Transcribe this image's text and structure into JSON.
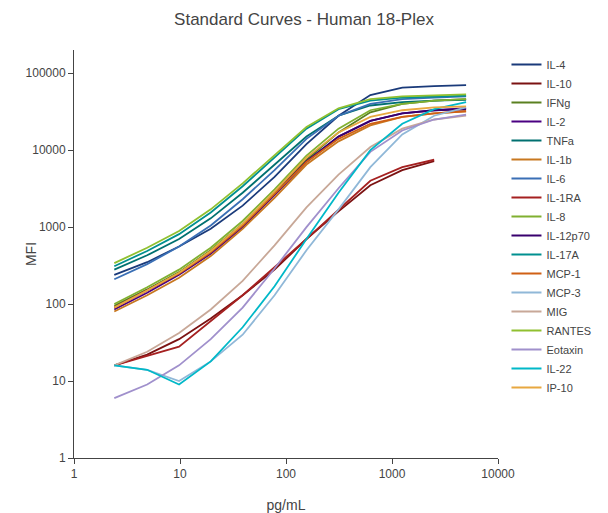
{
  "chart_data": {
    "type": "line",
    "title": "Standard Curves - Human 18-Plex",
    "xlabel": "pg/mL",
    "ylabel": "MFI",
    "log": true,
    "grid": false,
    "legend": "right",
    "xlim": [
      1,
      10000
    ],
    "ylim": [
      1,
      200000
    ],
    "xticks": [
      1,
      10,
      100,
      1000,
      10000
    ],
    "yticks": [
      1,
      10,
      100,
      1000,
      10000,
      100000
    ],
    "series": [
      {
        "name": "IL-4",
        "color": "#1a3a7a",
        "x": [
          2.4,
          4.9,
          9.8,
          19.5,
          39,
          78,
          156,
          313,
          625,
          1250,
          2500,
          5000
        ],
        "values": [
          240,
          350,
          560,
          950,
          1900,
          4500,
          12000,
          28000,
          52000,
          65000,
          68000,
          70000
        ]
      },
      {
        "name": "IL-10",
        "color": "#7b1212",
        "x": [
          2.4,
          4.9,
          9.8,
          19.5,
          39,
          78,
          156,
          313,
          625,
          1250,
          2500
        ],
        "values": [
          16,
          22,
          35,
          65,
          130,
          280,
          700,
          1600,
          3500,
          5500,
          7200
        ]
      },
      {
        "name": "IFNg",
        "color": "#5a8020",
        "x": [
          2.4,
          4.9,
          9.8,
          19.5,
          39,
          78,
          156,
          313,
          625,
          1250,
          2500,
          5000
        ],
        "values": [
          95,
          155,
          260,
          500,
          1100,
          2800,
          7500,
          17000,
          31000,
          40000,
          44000,
          46000
        ]
      },
      {
        "name": "IL-2",
        "color": "#4b0082",
        "x": [
          2.4,
          4.9,
          9.8,
          19.5,
          39,
          78,
          156,
          313,
          625,
          1250,
          2500,
          5000
        ],
        "values": [
          85,
          140,
          240,
          450,
          1000,
          2600,
          7000,
          15000,
          24000,
          30000,
          33000,
          35000
        ]
      },
      {
        "name": "TNFa",
        "color": "#007070",
        "x": [
          2.4,
          4.9,
          9.8,
          19.5,
          39,
          78,
          156,
          313,
          625,
          1250,
          2500,
          5000
        ],
        "values": [
          280,
          430,
          700,
          1300,
          2800,
          6500,
          15000,
          28000,
          38000,
          42000,
          44000,
          45000
        ]
      },
      {
        "name": "IL-1b",
        "color": "#c87820",
        "x": [
          2.4,
          4.9,
          9.8,
          19.5,
          39,
          78,
          156,
          313,
          625,
          1250,
          2500,
          5000
        ],
        "values": [
          80,
          130,
          220,
          420,
          950,
          2400,
          6500,
          13000,
          21000,
          27000,
          30000,
          32000
        ]
      },
      {
        "name": "IL-6",
        "color": "#3a6fb5",
        "x": [
          2.4,
          4.9,
          9.8,
          19.5,
          39,
          78,
          156,
          313,
          625,
          1250,
          2500,
          5000
        ],
        "values": [
          210,
          330,
          560,
          1050,
          2300,
          5500,
          14000,
          28000,
          40000,
          46000,
          48000,
          50000
        ]
      },
      {
        "name": "IL-1RA",
        "color": "#a52020",
        "x": [
          2.4,
          9.8,
          39,
          156,
          625,
          1250,
          2500
        ],
        "values": [
          16,
          28,
          130,
          700,
          4000,
          6000,
          7500
        ]
      },
      {
        "name": "IL-8",
        "color": "#80b030",
        "x": [
          2.4,
          4.9,
          9.8,
          19.5,
          39,
          78,
          156,
          313,
          625,
          1250,
          2500,
          5000
        ],
        "values": [
          100,
          165,
          280,
          540,
          1200,
          3100,
          8500,
          19000,
          33000,
          40000,
          44000,
          46000
        ]
      },
      {
        "name": "IL-12p70",
        "color": "#38006e",
        "x": [
          2.4,
          4.9,
          9.8,
          19.5,
          39,
          78,
          156,
          313,
          625,
          1250,
          2500,
          5000
        ],
        "values": [
          90,
          150,
          250,
          480,
          1050,
          2700,
          7200,
          15000,
          24000,
          30000,
          33000,
          34000
        ]
      },
      {
        "name": "IL-17A",
        "color": "#009090",
        "x": [
          2.4,
          4.9,
          9.8,
          19.5,
          39,
          78,
          156,
          313,
          625,
          1250,
          2500,
          5000
        ],
        "values": [
          310,
          490,
          810,
          1550,
          3400,
          8000,
          19000,
          34000,
          44000,
          48000,
          50000,
          51000
        ]
      },
      {
        "name": "MCP-1",
        "color": "#d06015",
        "x": [
          2.4,
          4.9,
          9.8,
          19.5,
          39,
          78,
          156,
          313,
          625,
          1250,
          2500,
          5000
        ],
        "values": [
          90,
          150,
          250,
          470,
          1050,
          2700,
          7000,
          14000,
          22000,
          27000,
          30000,
          32000
        ]
      },
      {
        "name": "MCP-3",
        "color": "#90b8d8",
        "x": [
          2.4,
          4.9,
          9.8,
          19.5,
          39,
          78,
          156,
          313,
          625,
          1250,
          2500,
          5000
        ],
        "values": [
          16,
          14,
          10,
          18,
          40,
          130,
          500,
          1700,
          6000,
          16000,
          28000,
          36000
        ]
      },
      {
        "name": "MIG",
        "color": "#c8a898",
        "x": [
          2.4,
          4.9,
          9.8,
          19.5,
          39,
          78,
          156,
          313,
          625,
          1250,
          2500,
          5000
        ],
        "values": [
          16,
          24,
          42,
          85,
          200,
          580,
          1800,
          4800,
          11000,
          19000,
          25000,
          28000
        ]
      },
      {
        "name": "RANTES",
        "color": "#90c030",
        "x": [
          2.4,
          4.9,
          9.8,
          19.5,
          39,
          78,
          156,
          313,
          625,
          1250,
          2500,
          5000
        ],
        "values": [
          340,
          540,
          890,
          1700,
          3700,
          8500,
          20000,
          35000,
          46000,
          50000,
          52000,
          53000
        ]
      },
      {
        "name": "Eotaxin",
        "color": "#a090cc",
        "x": [
          2.4,
          4.9,
          9.8,
          19.5,
          39,
          78,
          156,
          313,
          625,
          1250,
          2500,
          5000
        ],
        "values": [
          6,
          9,
          16,
          35,
          90,
          290,
          1000,
          3200,
          9500,
          18000,
          25000,
          29000
        ]
      },
      {
        "name": "IL-22",
        "color": "#00b8c8",
        "x": [
          2.4,
          4.9,
          9.8,
          19.5,
          39,
          78,
          156,
          313,
          625,
          1250,
          2500,
          5000
        ],
        "values": [
          16,
          14,
          9,
          18,
          50,
          170,
          700,
          2800,
          10000,
          22000,
          34000,
          42000
        ]
      },
      {
        "name": "IP-10",
        "color": "#e8a840",
        "x": [
          2.4,
          4.9,
          9.8,
          19.5,
          39,
          78,
          156,
          313,
          625,
          1250,
          2500,
          5000
        ],
        "values": [
          90,
          150,
          255,
          490,
          1100,
          2900,
          8000,
          17000,
          27000,
          33000,
          36000,
          37000
        ]
      }
    ]
  }
}
